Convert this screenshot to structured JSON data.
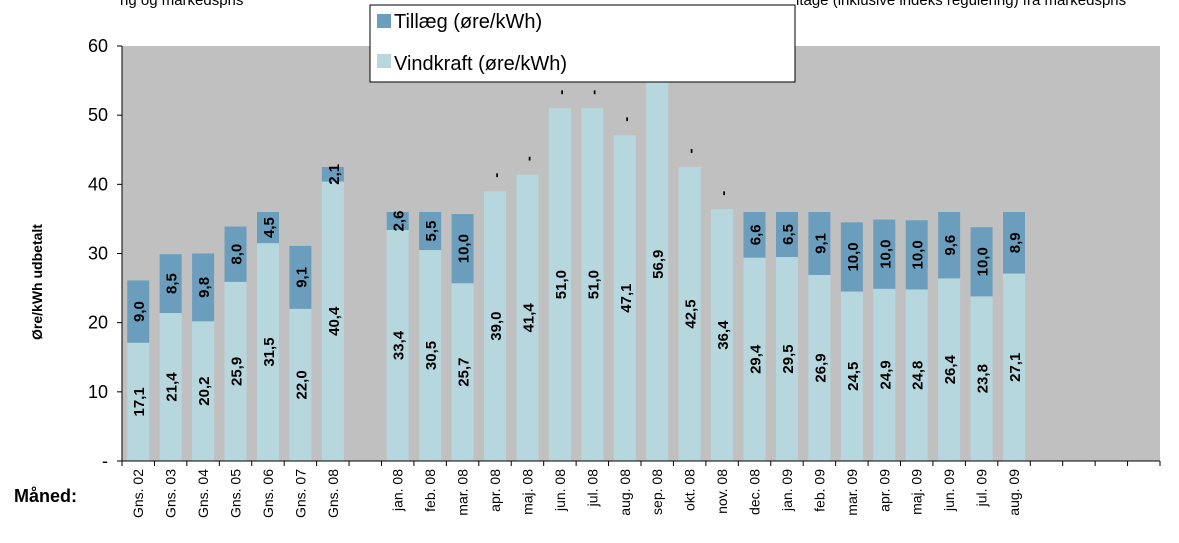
{
  "chart_data": {
    "type": "bar",
    "stacked": true,
    "title": "",
    "title_fragment": "ng og markedspris",
    "title_fragment_2": "ltage (inklusive indeks regulering) fra markedspris",
    "ylabel": "Øre/kWh udbetalt",
    "xlabel": "Måned:",
    "ylim": [
      0,
      60
    ],
    "yticks": [
      "-",
      "10",
      "20",
      "30",
      "40",
      "50",
      "60"
    ],
    "categories": [
      "Gns. 02",
      "Gns. 03",
      "Gns. 04",
      "Gns. 05",
      "Gns. 06",
      "Gns. 07",
      "Gns. 08",
      "",
      "jan. 08",
      "feb. 08",
      "mar. 08",
      "apr. 08",
      "maj. 08",
      "jun. 08",
      "jul. 08",
      "aug. 08",
      "sep. 08",
      "okt. 08",
      "nov. 08",
      "dec. 08",
      "jan. 09",
      "feb. 09",
      "mar. 09",
      "apr. 09",
      "maj. 09",
      "jun. 09",
      "jul. 09",
      "aug. 09",
      "",
      "",
      "",
      ""
    ],
    "series": [
      {
        "name": "Vindkraft (øre/kWh)",
        "color": "#b7d7de",
        "values": [
          17.1,
          21.4,
          20.2,
          25.9,
          31.5,
          22.0,
          40.4,
          null,
          33.4,
          30.5,
          25.7,
          39.0,
          41.4,
          51.0,
          51.0,
          47.1,
          56.9,
          42.5,
          36.4,
          29.4,
          29.5,
          26.9,
          24.5,
          24.9,
          24.8,
          26.4,
          23.8,
          27.1,
          null,
          null,
          null,
          null
        ],
        "labels": [
          "17,1",
          "21,4",
          "20,2",
          "25,9",
          "31,5",
          "22,0",
          "40,4",
          "",
          "33,4",
          "30,5",
          "25,7",
          "39,0",
          "41,4",
          "51,0",
          "51,0",
          "47,1",
          "56,9",
          "42,5",
          "36,4",
          "29,4",
          "29,5",
          "26,9",
          "24,5",
          "24,9",
          "24,8",
          "26,4",
          "23,8",
          "27,1",
          "",
          "",
          "",
          ""
        ]
      },
      {
        "name": "Tillæg (øre/kWh)",
        "color": "#6b9dbd",
        "values": [
          9.0,
          8.5,
          9.8,
          8.0,
          4.5,
          9.1,
          2.1,
          null,
          2.6,
          5.5,
          10.0,
          0,
          0,
          0,
          0,
          0,
          0,
          0,
          0,
          6.6,
          6.5,
          9.1,
          10.0,
          10.0,
          10.0,
          9.6,
          10.0,
          8.9,
          null,
          null,
          null,
          null
        ],
        "labels": [
          "9,0",
          "8,5",
          "9,8",
          "8,0",
          "4,5",
          "9,1",
          "2,1",
          "",
          "2,6",
          "5,5",
          "10,0",
          "-",
          "-",
          "-",
          "-",
          "-",
          "-",
          "-",
          "-",
          "6,6",
          "6,5",
          "9,1",
          "10,0",
          "10,0",
          "10,0",
          "9,6",
          "10,0",
          "8,9",
          "",
          "",
          "",
          ""
        ]
      }
    ],
    "legend": {
      "placement": "top-center",
      "entries": [
        "Tillæg (øre/kWh)",
        "Vindkraft (øre/kWh)"
      ]
    },
    "grid": false,
    "plot_background": "#c0c0c0"
  }
}
